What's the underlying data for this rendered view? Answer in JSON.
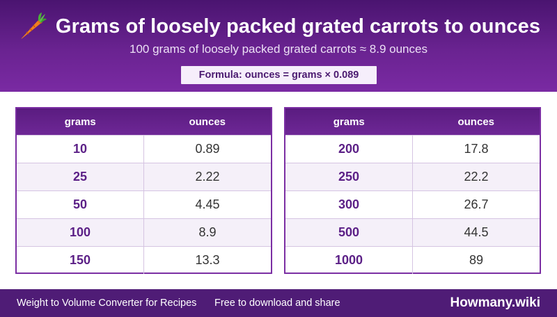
{
  "header": {
    "icon": "carrot-icon",
    "title": "Grams of loosely packed grated carrots to ounces",
    "subtitle": "100 grams of loosely packed grated carrots ≈ 8.9 ounces",
    "formula": "Formula: ounces = grams × 0.089"
  },
  "tables": [
    {
      "headers": [
        "grams",
        "ounces"
      ],
      "rows": [
        {
          "grams": "10",
          "ounces": "0.89"
        },
        {
          "grams": "25",
          "ounces": "2.22"
        },
        {
          "grams": "50",
          "ounces": "4.45"
        },
        {
          "grams": "100",
          "ounces": "8.9"
        },
        {
          "grams": "150",
          "ounces": "13.3"
        }
      ]
    },
    {
      "headers": [
        "grams",
        "ounces"
      ],
      "rows": [
        {
          "grams": "200",
          "ounces": "17.8"
        },
        {
          "grams": "250",
          "ounces": "22.2"
        },
        {
          "grams": "300",
          "ounces": "26.7"
        },
        {
          "grams": "500",
          "ounces": "44.5"
        },
        {
          "grams": "1000",
          "ounces": "89"
        }
      ]
    }
  ],
  "footer": {
    "left_text": "Weight to Volume Converter for Recipes",
    "mid_text": "Free to download and share",
    "brand": "Howmany.wiki"
  },
  "colors": {
    "header_purple": "#6a2391",
    "footer_purple": "#4f1c76",
    "accent_text": "#5b1f86"
  }
}
